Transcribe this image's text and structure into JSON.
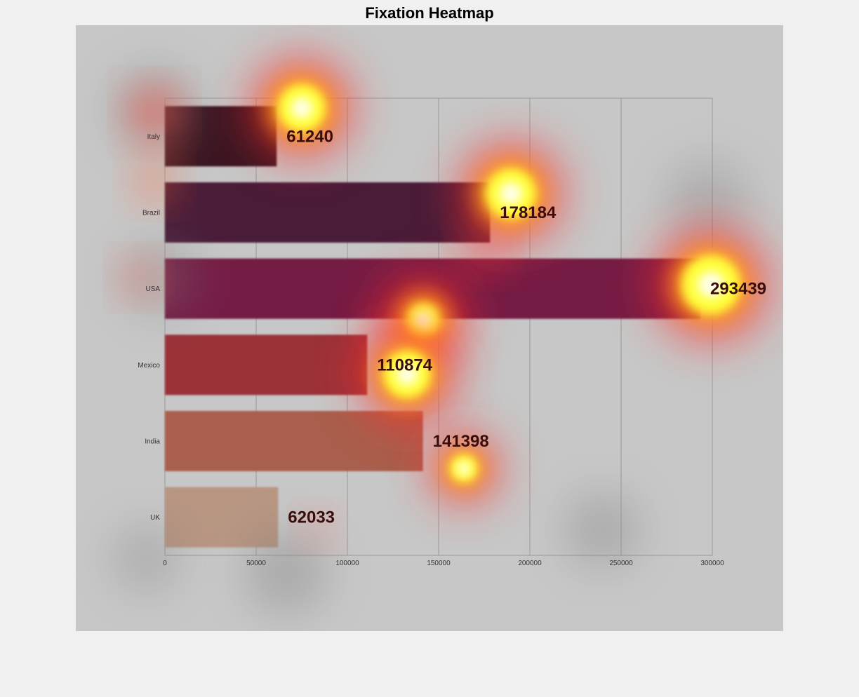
{
  "title": "Fixation Heatmap",
  "chart_data": {
    "type": "bar",
    "orientation": "horizontal",
    "title": "Fixation Heatmap",
    "categories": [
      "Italy",
      "Brazil",
      "USA",
      "Mexico",
      "India",
      "UK"
    ],
    "values": [
      61240,
      178184,
      293439,
      110874,
      141398,
      62033
    ],
    "value_labels": [
      "61240",
      "178184",
      "293439",
      "110874",
      "141398",
      "62033"
    ],
    "bar_colors": [
      "#3b1623",
      "#4a1c38",
      "#741b44",
      "#9a3038",
      "#a95e4e",
      "#b89682"
    ],
    "xlim": [
      0,
      300000
    ],
    "xticks": [
      0,
      50000,
      100000,
      150000,
      200000,
      250000,
      300000
    ],
    "xtick_labels": [
      "0",
      "50000",
      "100000",
      "150000",
      "200000",
      "250000",
      "300000"
    ],
    "xlabel": "",
    "ylabel": "",
    "grid": true,
    "overlay": "heatmap"
  }
}
